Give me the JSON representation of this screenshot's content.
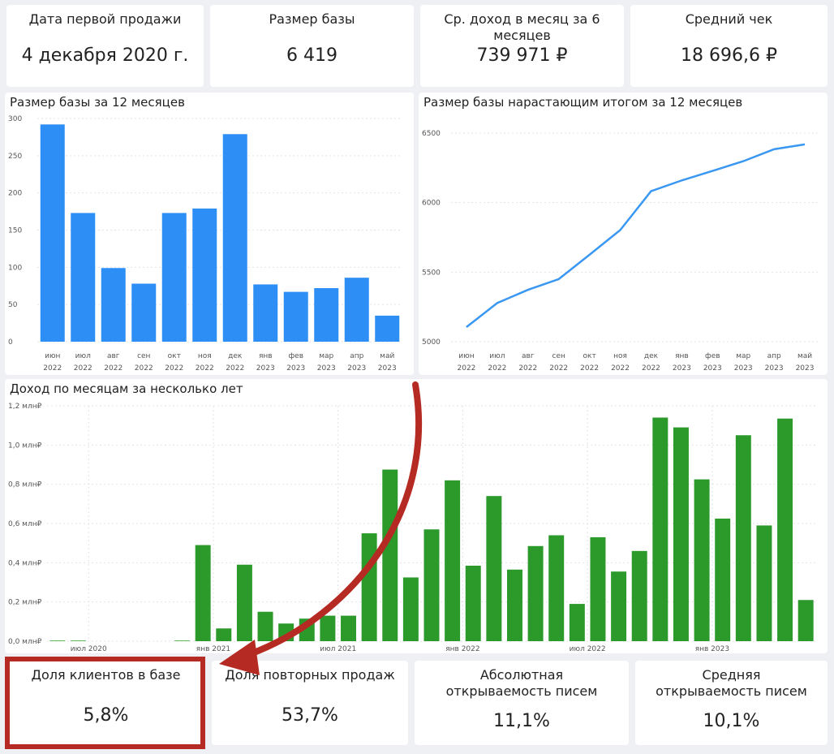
{
  "kpis_top": [
    {
      "title": "Дата первой продажи",
      "value": "4 декабря 2020 г."
    },
    {
      "title": "Размер базы",
      "value": "6 419"
    },
    {
      "title": "Ср. доход в месяц за 6 месяцев",
      "value": "739 971 ₽"
    },
    {
      "title": "Средний чек",
      "value": "18 696,6 ₽"
    }
  ],
  "kpis_bottom": [
    {
      "title": "Доля клиентов в базе",
      "value": "5,8%"
    },
    {
      "title": "Доля повторных продаж",
      "value": "53,7%"
    },
    {
      "title": "Абсолютная открываемость писем",
      "value": "11,1%"
    },
    {
      "title": "Средняя открываемость писем",
      "value": "10,1%"
    }
  ],
  "colors": {
    "blue": "#2d8ff5",
    "line": "#3a97f2",
    "green": "#2b9a2b",
    "annotation": "#b52a22"
  },
  "chart_data": [
    {
      "type": "bar",
      "title": "Размер базы за 12 месяцев",
      "categories": [
        [
          "июн",
          "2022"
        ],
        [
          "июл",
          "2022"
        ],
        [
          "авг",
          "2022"
        ],
        [
          "сен",
          "2022"
        ],
        [
          "окт",
          "2022"
        ],
        [
          "ноя",
          "2022"
        ],
        [
          "дек",
          "2022"
        ],
        [
          "янв",
          "2023"
        ],
        [
          "фев",
          "2023"
        ],
        [
          "мар",
          "2023"
        ],
        [
          "апр",
          "2023"
        ],
        [
          "май",
          "2023"
        ]
      ],
      "values": [
        292,
        173,
        99,
        78,
        173,
        179,
        279,
        77,
        67,
        72,
        86,
        35
      ],
      "yticks": [
        "0",
        "50",
        "100",
        "150",
        "200",
        "250",
        "300"
      ],
      "ylim": [
        0,
        300
      ],
      "color": "#2d8ff5"
    },
    {
      "type": "line",
      "title": "Размер базы нарастающим итогом за 12 месяцев",
      "categories": [
        [
          "июн",
          "2022"
        ],
        [
          "июл",
          "2022"
        ],
        [
          "авг",
          "2022"
        ],
        [
          "сен",
          "2022"
        ],
        [
          "окт",
          "2022"
        ],
        [
          "ноя",
          "2022"
        ],
        [
          "дек",
          "2022"
        ],
        [
          "янв",
          "2023"
        ],
        [
          "фев",
          "2023"
        ],
        [
          "мар",
          "2023"
        ],
        [
          "апр",
          "2023"
        ],
        [
          "май",
          "2023"
        ]
      ],
      "values": [
        5105,
        5278,
        5373,
        5450,
        5625,
        5803,
        6082,
        6160,
        6228,
        6298,
        6384,
        6419
      ],
      "yticks": [
        "5000",
        "5500",
        "6000",
        "6500"
      ],
      "ylim": [
        5000,
        6500
      ],
      "color": "#3a97f2"
    },
    {
      "type": "bar",
      "title": "Доход по месяцам за несколько лет",
      "values_mln": [
        0.003,
        0.003,
        0,
        0,
        0,
        0,
        0.003,
        0.49,
        0.065,
        0.39,
        0.15,
        0.09,
        0.115,
        0.13,
        0.13,
        0.55,
        0.875,
        0.325,
        0.57,
        0.82,
        0.385,
        0.74,
        0.365,
        0.485,
        0.54,
        0.19,
        0.53,
        0.355,
        0.46,
        1.14,
        1.09,
        0.825,
        0.625,
        1.05,
        0.59,
        1.135,
        0.21
      ],
      "yticks": [
        "0,0 млн₽",
        "0,2 млн₽",
        "0,4 млн₽",
        "0,6 млн₽",
        "0,8 млн₽",
        "1,0 млн₽",
        "1,2 млн₽"
      ],
      "ylim": [
        0,
        1.2
      ],
      "xticks": [
        {
          "label": "июл 2020",
          "index": 1.5
        },
        {
          "label": "янв 2021",
          "index": 7.5
        },
        {
          "label": "июл 2021",
          "index": 13.5
        },
        {
          "label": "янв 2022",
          "index": 19.5
        },
        {
          "label": "июл 2022",
          "index": 25.5
        },
        {
          "label": "янв 2023",
          "index": 31.5
        }
      ],
      "color": "#2b9a2b"
    }
  ]
}
